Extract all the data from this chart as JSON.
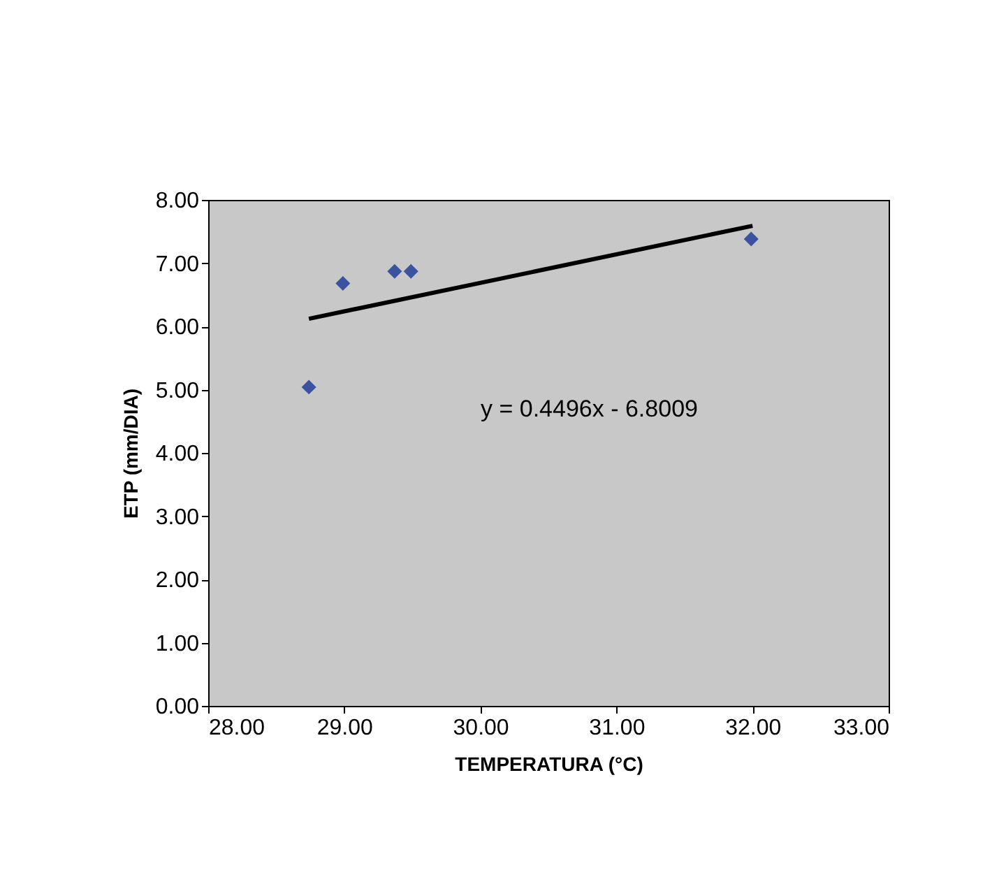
{
  "chart_data": {
    "type": "scatter",
    "xlabel": "TEMPERATURA (°C)",
    "ylabel": "ETP (mm/DIA)",
    "grid": false,
    "xlim": [
      28,
      33
    ],
    "xticks": [
      {
        "value": 28,
        "label": "28.00"
      },
      {
        "value": 29,
        "label": "29.00"
      },
      {
        "value": 30,
        "label": "30.00"
      },
      {
        "value": 31,
        "label": "31.00"
      },
      {
        "value": 32,
        "label": "32.00"
      },
      {
        "value": 33,
        "label": "33.00"
      }
    ],
    "ylim": [
      0,
      8
    ],
    "yticks": [
      {
        "value": 0,
        "label": "0.00"
      },
      {
        "value": 1,
        "label": "1.00"
      },
      {
        "value": 2,
        "label": "2.00"
      },
      {
        "value": 3,
        "label": "3.00"
      },
      {
        "value": 4,
        "label": "4.00"
      },
      {
        "value": 5,
        "label": "5.00"
      },
      {
        "value": 6,
        "label": "6.00"
      },
      {
        "value": 7,
        "label": "7.00"
      },
      {
        "value": 8,
        "label": "8.00"
      }
    ],
    "series": [
      {
        "marker": "diamond",
        "color": "#3a52a0",
        "x": [
          28.74,
          28.99,
          29.37,
          29.49,
          31.99
        ],
        "values": [
          5.04,
          6.68,
          6.87,
          6.87,
          7.38
        ]
      },
      {
        "type": "line",
        "marker": "none",
        "color": "#000000",
        "x": [
          28.74,
          32.0
        ],
        "values": [
          6.12,
          7.59
        ]
      }
    ],
    "annotations": [
      "y = 0.4496x - 6.8009"
    ]
  }
}
